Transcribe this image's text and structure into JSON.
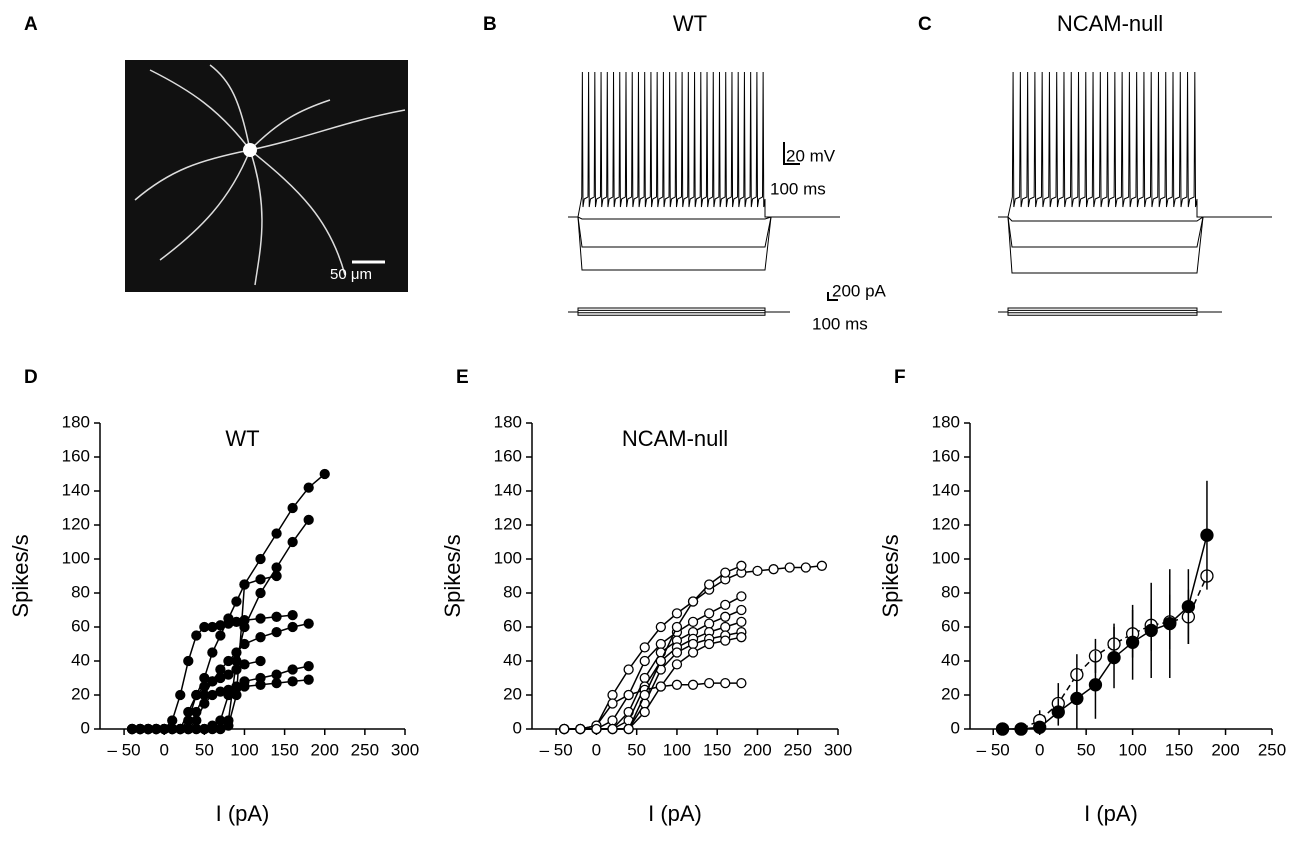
{
  "panels": {
    "A": {
      "label": "A",
      "scale_bar": "50 μm"
    },
    "B": {
      "label": "B",
      "title": "WT",
      "voltage_scale": "20 mV",
      "time_scale": "100 ms",
      "current_scale": "200 pA",
      "current_time_scale": "100 ms"
    },
    "C": {
      "label": "C",
      "title": "NCAM-null"
    }
  },
  "chart_data": [
    {
      "type": "line",
      "panel_label": "D",
      "title": "WT",
      "x_label": "I (pA)",
      "y_label": "Spikes/s",
      "marker": "filled",
      "color": "#000000",
      "x": [
        -40,
        -30,
        -20,
        -10,
        0,
        10,
        20,
        30,
        40,
        50,
        60,
        70,
        80,
        90,
        100,
        120,
        140,
        160,
        180,
        200
      ],
      "series": [
        {
          "values": [
            0,
            0,
            0,
            0,
            0,
            0,
            0,
            5,
            20,
            30,
            45,
            55,
            65,
            75,
            85,
            100,
            115,
            130,
            142,
            150
          ]
        },
        {
          "values": [
            0,
            0,
            0,
            0,
            0,
            0,
            0,
            0,
            0,
            0,
            0,
            0,
            5,
            40,
            60,
            80,
            95,
            110,
            123,
            null
          ]
        },
        {
          "values": [
            0,
            0,
            0,
            0,
            0,
            5,
            20,
            40,
            55,
            60,
            60,
            61,
            62,
            63,
            64,
            65,
            66,
            67,
            null,
            null
          ]
        },
        {
          "values": [
            0,
            0,
            0,
            0,
            0,
            0,
            0,
            0,
            10,
            20,
            28,
            35,
            40,
            45,
            50,
            54,
            57,
            60,
            62,
            null
          ]
        },
        {
          "values": [
            0,
            0,
            0,
            0,
            0,
            0,
            0,
            0,
            0,
            0,
            2,
            5,
            20,
            25,
            28,
            30,
            32,
            35,
            37,
            null
          ]
        },
        {
          "values": [
            0,
            0,
            0,
            0,
            0,
            0,
            0,
            0,
            5,
            15,
            20,
            22,
            23,
            24,
            25,
            26,
            27,
            28,
            29,
            null
          ]
        },
        {
          "values": [
            0,
            0,
            0,
            0,
            0,
            0,
            0,
            0,
            0,
            0,
            0,
            0,
            2,
            20,
            85,
            88,
            90,
            null,
            null,
            null
          ]
        },
        {
          "values": [
            0,
            0,
            0,
            0,
            0,
            0,
            0,
            10,
            20,
            25,
            28,
            30,
            32,
            35,
            38,
            40,
            null,
            null,
            null,
            null
          ]
        }
      ],
      "xlim": [
        -80,
        300
      ],
      "xticks": [
        {
          "value": -50,
          "label": "– 50"
        },
        0,
        50,
        100,
        150,
        200,
        250,
        300
      ],
      "ylim": [
        0,
        180
      ],
      "yticks": [
        0,
        20,
        40,
        60,
        80,
        100,
        120,
        140,
        160,
        180
      ]
    },
    {
      "type": "line",
      "panel_label": "E",
      "title": "NCAM-null",
      "x_label": "I (pA)",
      "y_label": "Spikes/s",
      "marker": "open",
      "color": "#000000",
      "x": [
        -40,
        -20,
        0,
        20,
        40,
        60,
        80,
        100,
        120,
        140,
        160,
        180,
        200,
        220,
        240,
        260,
        280
      ],
      "series": [
        {
          "values": [
            0,
            0,
            2,
            20,
            35,
            48,
            60,
            68,
            75,
            82,
            88,
            92,
            93,
            94,
            95,
            95,
            96
          ]
        },
        {
          "values": [
            0,
            0,
            0,
            5,
            20,
            40,
            50,
            57,
            63,
            68,
            73,
            78,
            null,
            null,
            null,
            null,
            null
          ]
        },
        {
          "values": [
            0,
            0,
            0,
            0,
            10,
            30,
            45,
            52,
            57,
            62,
            66,
            70,
            null,
            null,
            null,
            null,
            null
          ]
        },
        {
          "values": [
            0,
            0,
            0,
            0,
            5,
            25,
            40,
            48,
            53,
            57,
            60,
            63,
            null,
            null,
            null,
            null,
            null
          ]
        },
        {
          "values": [
            0,
            0,
            0,
            0,
            0,
            15,
            35,
            45,
            50,
            53,
            55,
            57,
            null,
            null,
            null,
            null,
            null
          ]
        },
        {
          "values": [
            0,
            0,
            0,
            0,
            0,
            10,
            25,
            38,
            45,
            50,
            52,
            54,
            null,
            null,
            null,
            null,
            null
          ]
        },
        {
          "values": [
            0,
            0,
            2,
            15,
            20,
            23,
            25,
            26,
            26,
            27,
            27,
            27,
            null,
            null,
            null,
            null,
            null
          ]
        },
        {
          "values": [
            0,
            0,
            0,
            0,
            0,
            20,
            40,
            60,
            75,
            85,
            92,
            96,
            null,
            null,
            null,
            null,
            null
          ]
        }
      ],
      "xlim": [
        -80,
        300
      ],
      "xticks": [
        {
          "value": -50,
          "label": "– 50"
        },
        0,
        50,
        100,
        150,
        200,
        250,
        300
      ],
      "ylim": [
        0,
        180
      ],
      "yticks": [
        0,
        20,
        40,
        60,
        80,
        100,
        120,
        140,
        160,
        180
      ]
    },
    {
      "type": "errorline",
      "panel_label": "F",
      "x_label": "I (pA)",
      "y_label": "Spikes/s",
      "color": "#000000",
      "x": [
        -40,
        -20,
        0,
        20,
        40,
        60,
        80,
        100,
        120,
        140,
        160,
        180
      ],
      "series": [
        {
          "marker": "open",
          "dash": true,
          "values": [
            0,
            0,
            5,
            15,
            32,
            43,
            50,
            56,
            61,
            63,
            66,
            90
          ],
          "errors": [
            0,
            0,
            6,
            12,
            12,
            10,
            12,
            14,
            15,
            16,
            16,
            0
          ]
        },
        {
          "marker": "filled",
          "dash": false,
          "values": [
            0,
            0,
            1,
            10,
            18,
            26,
            42,
            51,
            58,
            62,
            72,
            114
          ],
          "errors": [
            0,
            0,
            2,
            8,
            18,
            20,
            18,
            22,
            28,
            32,
            22,
            32
          ]
        }
      ],
      "xlim": [
        -75,
        250
      ],
      "xticks": [
        {
          "value": -50,
          "label": "– 50"
        },
        0,
        50,
        100,
        150,
        200,
        250
      ],
      "ylim": [
        0,
        180
      ],
      "yticks": [
        0,
        20,
        40,
        60,
        80,
        100,
        120,
        140,
        160,
        180
      ]
    }
  ]
}
